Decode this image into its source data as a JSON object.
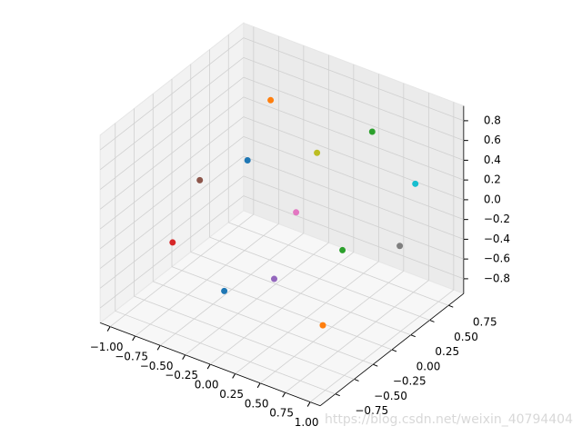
{
  "chart_data": {
    "type": "scatter3d",
    "x": [
      -0.57,
      -0.49,
      0.45,
      -0.64,
      0.3,
      -0.67,
      -0.16,
      0.65,
      0.2,
      0.73,
      -0.35,
      0.56,
      0.53
    ],
    "y": [
      0.3,
      0.5,
      0.6,
      -0.6,
      -0.5,
      -0.2,
      0.4,
      0.7,
      0.2,
      0.8,
      -0.3,
      -0.2,
      0.1
    ],
    "z": [
      0.15,
      0.67,
      0.65,
      -0.17,
      -0.24,
      0.21,
      -0.28,
      -0.49,
      0.58,
      0.11,
      -0.73,
      -0.79,
      -0.22
    ],
    "colors": [
      "#1f77b4",
      "#ff7f0e",
      "#2ca02c",
      "#d62728",
      "#9467bd",
      "#8c564b",
      "#e377c2",
      "#7f7f7f",
      "#bcbd22",
      "#17becf",
      "#1f77b4",
      "#ff7f0e",
      "#2ca02c"
    ],
    "xlim": [
      -1.1,
      1.1
    ],
    "ylim": [
      -0.95,
      0.95
    ],
    "zlim": [
      -0.95,
      0.95
    ],
    "xticks": [
      {
        "value": -1,
        "label": "−1.00"
      },
      {
        "value": -0.75,
        "label": "−0.75"
      },
      {
        "value": -0.5,
        "label": "−0.50"
      },
      {
        "value": -0.25,
        "label": "−0.25"
      },
      {
        "value": 0,
        "label": "0.00"
      },
      0.25,
      {
        "value": 0.5,
        "label": "0.50"
      },
      0.75,
      {
        "value": 1,
        "label": "1.00"
      }
    ],
    "yticks": [
      {
        "value": -0.75,
        "label": "−0.75"
      },
      {
        "value": -0.5,
        "label": "−0.50"
      },
      {
        "value": -0.25,
        "label": "−0.25"
      },
      {
        "value": 0,
        "label": "0.00"
      },
      0.25,
      {
        "value": 0.5,
        "label": "0.50"
      },
      0.75
    ],
    "zticks": [
      {
        "value": -0.8,
        "label": "−0.8"
      },
      {
        "value": -0.6,
        "label": "−0.6"
      },
      {
        "value": -0.4,
        "label": "−0.4"
      },
      {
        "value": -0.2,
        "label": "−0.2"
      },
      {
        "value": 0,
        "label": "0.0"
      },
      0.2,
      0.4,
      0.6,
      0.8
    ],
    "grid": true,
    "watermark": "https://blog.csdn.net/weixin_40794404"
  }
}
